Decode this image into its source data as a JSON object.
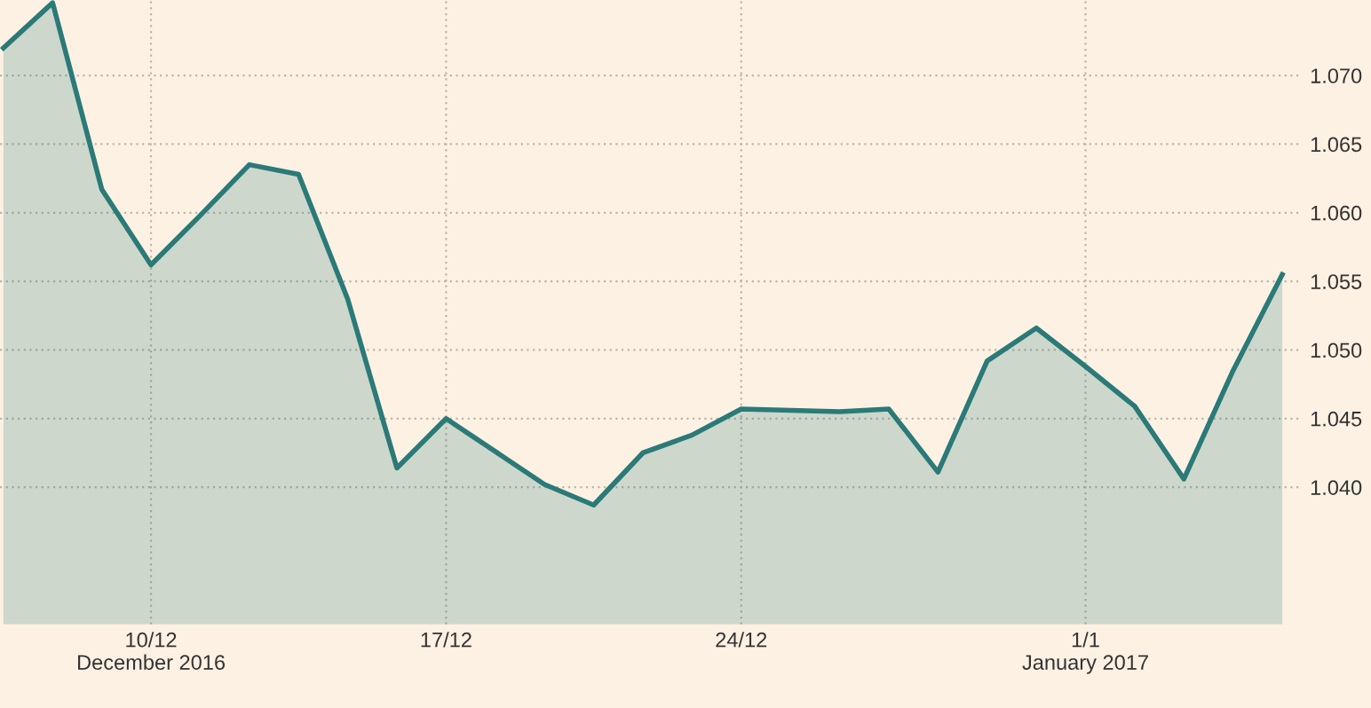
{
  "chart_data": {
    "type": "area",
    "categories": [
      null,
      null,
      null,
      "10/12\nDecember 2016",
      null,
      null,
      null,
      null,
      null,
      "17/12",
      null,
      null,
      null,
      null,
      null,
      "24/12",
      null,
      null,
      null,
      null,
      null,
      null,
      "1/1\nJanuary 2017",
      null,
      null,
      null,
      null
    ],
    "series": [
      {
        "color": "#2a7a78",
        "values": [
          1.072,
          1.0753,
          1.0617,
          1.0562,
          1.0598,
          1.0635,
          1.0628,
          1.0537,
          1.0414,
          1.045,
          1.0426,
          1.0402,
          1.0387,
          1.0425,
          1.0438,
          1.0457,
          1.0456,
          1.0455,
          1.0457,
          1.0411,
          1.0492,
          1.0516,
          1.0488,
          1.0459,
          1.0406,
          1.0485,
          1.0555
        ]
      }
    ],
    "ylim": [
      1.03,
      1.0755
    ],
    "yticks": [
      {
        "value": 1.04,
        "label": "1.040"
      },
      {
        "value": 1.045,
        "label": "1.045"
      },
      {
        "value": 1.05,
        "label": "1.050"
      },
      {
        "value": 1.055,
        "label": "1.055"
      },
      {
        "value": 1.06,
        "label": "1.060"
      },
      {
        "value": 1.065,
        "label": "1.065"
      },
      {
        "value": 1.07,
        "label": "1.070"
      }
    ],
    "grid": true,
    "marker": "none",
    "line_style": "solid"
  }
}
